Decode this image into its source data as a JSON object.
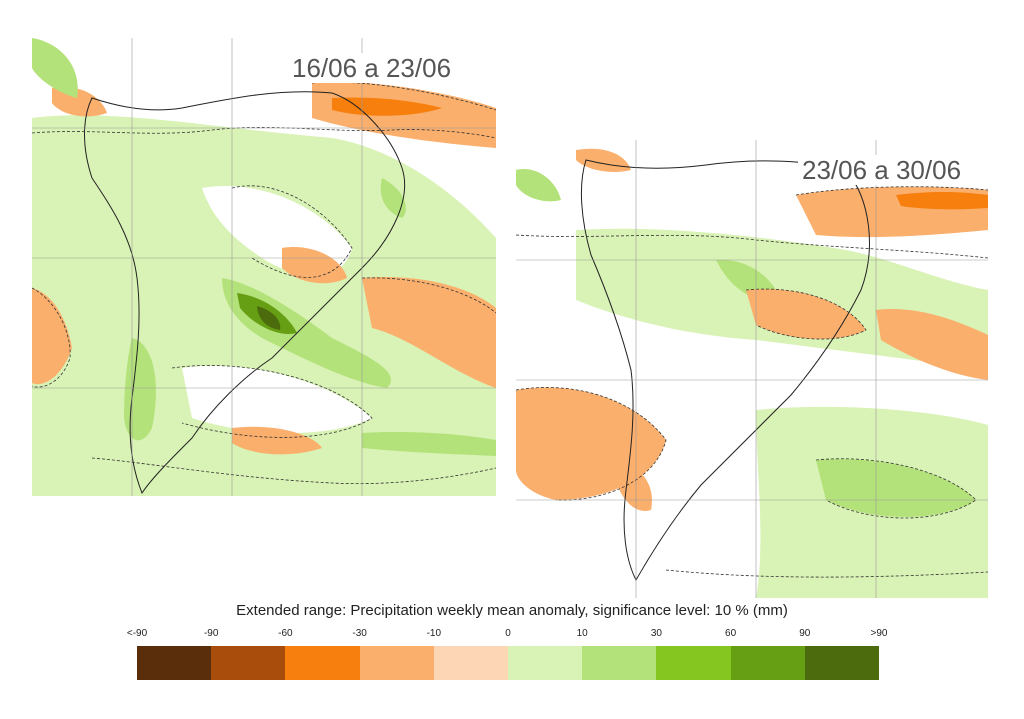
{
  "maps": [
    {
      "period": "16/06 a 23/06"
    },
    {
      "period": "23/06 a 30/06"
    }
  ],
  "legend": {
    "title": "Extended range: Precipitation weekly mean anomaly, significance level: 10 % (mm)",
    "ticks": [
      "<-90",
      "-90",
      "-60",
      "-30",
      "-10",
      "0",
      "10",
      "30",
      "60",
      "90",
      ">90"
    ],
    "colors": [
      "#5a2e0a",
      "#a84d0c",
      "#f77f0d",
      "#fbaf6d",
      "#fdd6b5",
      "#d9f2b5",
      "#b4e27a",
      "#86c621",
      "#679f14",
      "#4b6b0c"
    ]
  }
}
